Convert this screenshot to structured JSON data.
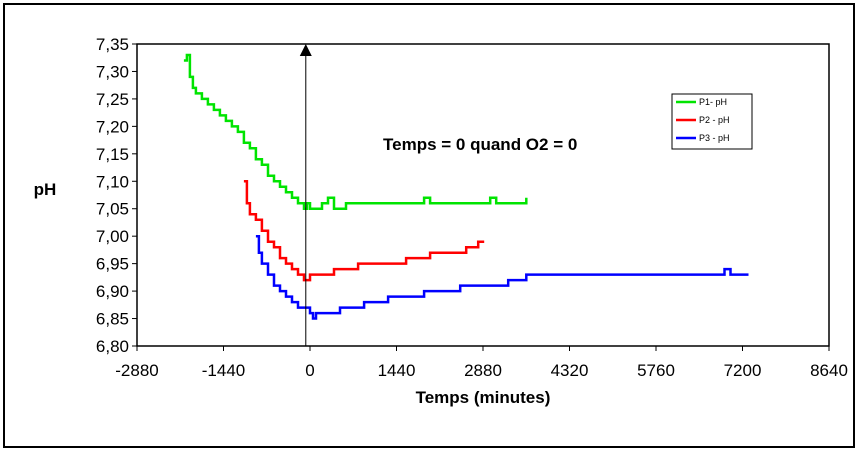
{
  "chart_data": {
    "type": "line",
    "title": "",
    "xlabel": "Temps (minutes)",
    "ylabel": "pH",
    "xlim": [
      -2880,
      8640
    ],
    "ylim": [
      6.8,
      7.35
    ],
    "x_ticks": [
      "-2880",
      "-1440",
      "0",
      "1440",
      "2880",
      "4320",
      "5760",
      "7200",
      "8640"
    ],
    "x_tick_values": [
      -2880,
      -1440,
      0,
      1440,
      2880,
      4320,
      5760,
      7200,
      8640
    ],
    "y_ticks": [
      "6,80",
      "6,85",
      "6,90",
      "6,95",
      "7,00",
      "7,05",
      "7,10",
      "7,15",
      "7,20",
      "7,25",
      "7,30",
      "7,35"
    ],
    "y_tick_values": [
      6.8,
      6.85,
      6.9,
      6.95,
      7.0,
      7.05,
      7.1,
      7.15,
      7.2,
      7.25,
      7.3,
      7.35
    ],
    "annotation": "Temps = 0 quand O2 = 0",
    "vertical_marker_x": -70,
    "legend_position": "top-right",
    "grid": false,
    "series": [
      {
        "name": "P1- pH",
        "color": "#00e400",
        "x": [
          -2100,
          -2050,
          -2000,
          -1950,
          -1900,
          -1800,
          -1700,
          -1600,
          -1500,
          -1400,
          -1300,
          -1200,
          -1100,
          -1000,
          -900,
          -800,
          -700,
          -600,
          -500,
          -400,
          -300,
          -200,
          -100,
          -50,
          0,
          100,
          200,
          300,
          400,
          500,
          600,
          700,
          800,
          900,
          1000,
          1200,
          1400,
          1600,
          1800,
          1900,
          2000,
          2200,
          2400,
          2600,
          2800,
          3000,
          3100,
          3200,
          3400,
          3600
        ],
        "values": [
          7.32,
          7.33,
          7.29,
          7.27,
          7.26,
          7.25,
          7.24,
          7.23,
          7.22,
          7.21,
          7.2,
          7.19,
          7.17,
          7.16,
          7.14,
          7.13,
          7.11,
          7.1,
          7.09,
          7.08,
          7.07,
          7.06,
          7.05,
          7.06,
          7.05,
          7.05,
          7.06,
          7.07,
          7.05,
          7.05,
          7.06,
          7.06,
          7.06,
          7.06,
          7.06,
          7.06,
          7.06,
          7.06,
          7.06,
          7.07,
          7.06,
          7.06,
          7.06,
          7.06,
          7.06,
          7.07,
          7.06,
          7.06,
          7.06,
          7.07
        ]
      },
      {
        "name": "P2 - pH",
        "color": "#ff0000",
        "x": [
          -1100,
          -1050,
          -1000,
          -900,
          -800,
          -700,
          -600,
          -500,
          -400,
          -300,
          -200,
          -100,
          0,
          200,
          400,
          600,
          800,
          1000,
          1200,
          1400,
          1600,
          1800,
          2000,
          2200,
          2400,
          2600,
          2800,
          2900
        ],
        "values": [
          7.1,
          7.06,
          7.04,
          7.03,
          7.01,
          6.99,
          6.98,
          6.96,
          6.95,
          6.94,
          6.93,
          6.92,
          6.93,
          6.93,
          6.94,
          6.94,
          6.95,
          6.95,
          6.95,
          6.95,
          6.96,
          6.96,
          6.97,
          6.97,
          6.97,
          6.98,
          6.99,
          6.99
        ]
      },
      {
        "name": "P3 - pH",
        "color": "#0000ff",
        "x": [
          -900,
          -850,
          -800,
          -700,
          -600,
          -500,
          -400,
          -300,
          -200,
          -100,
          0,
          50,
          100,
          300,
          500,
          700,
          900,
          1100,
          1300,
          1500,
          1700,
          1900,
          2100,
          2300,
          2500,
          2700,
          2900,
          3100,
          3300,
          3600,
          4000,
          4500,
          5000,
          5500,
          6000,
          6500,
          6900,
          7000,
          7300
        ],
        "values": [
          7.0,
          6.97,
          6.95,
          6.93,
          6.91,
          6.9,
          6.89,
          6.88,
          6.87,
          6.87,
          6.86,
          6.85,
          6.86,
          6.86,
          6.87,
          6.87,
          6.88,
          6.88,
          6.89,
          6.89,
          6.89,
          6.9,
          6.9,
          6.9,
          6.91,
          6.91,
          6.91,
          6.91,
          6.92,
          6.93,
          6.93,
          6.93,
          6.93,
          6.93,
          6.93,
          6.93,
          6.94,
          6.93,
          6.93
        ]
      }
    ]
  }
}
